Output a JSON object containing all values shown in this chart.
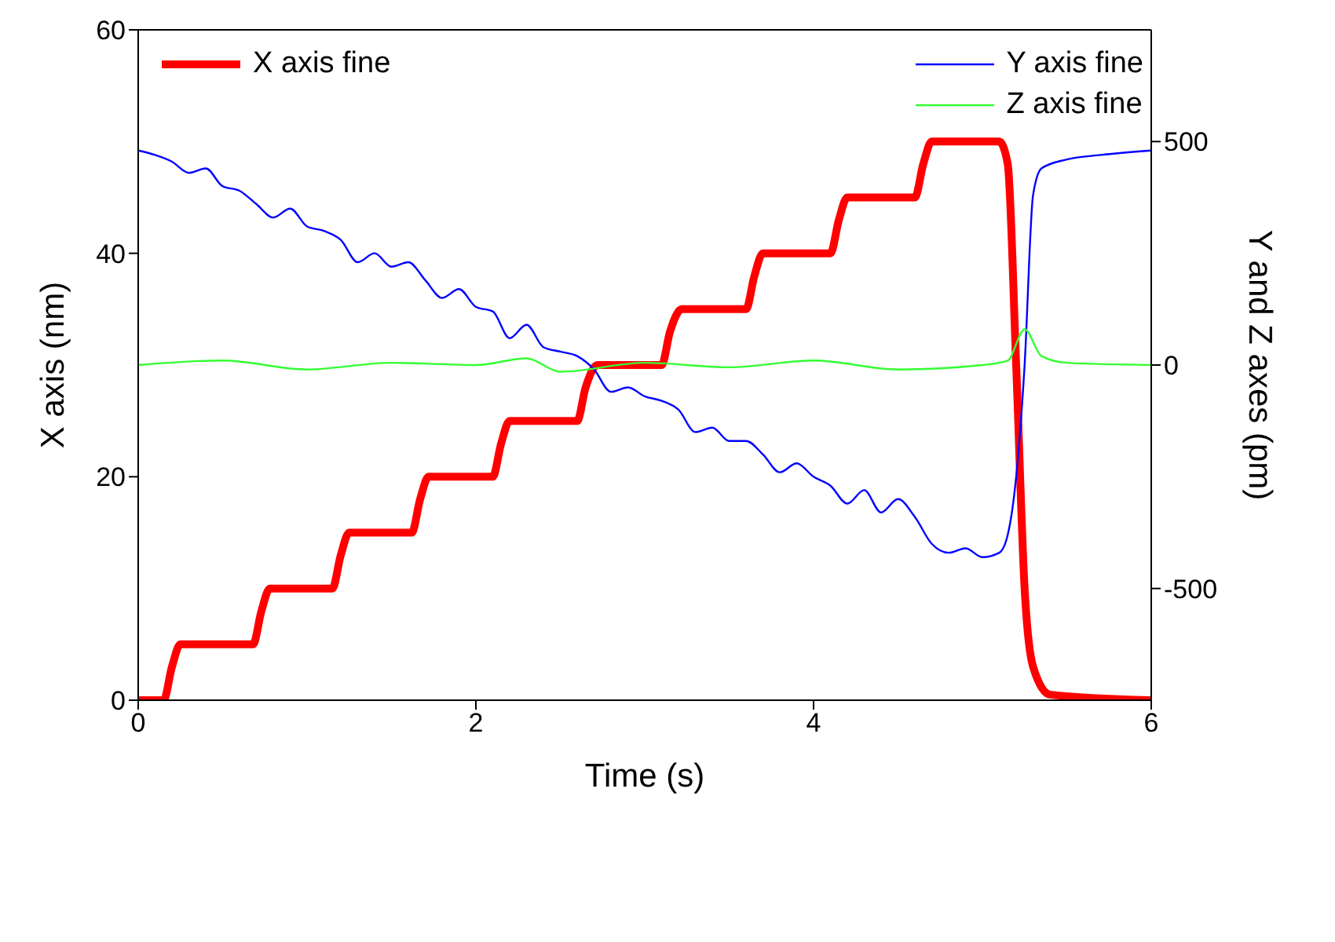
{
  "chart_data": {
    "type": "line",
    "xlabel": "Time (s)",
    "ylabel": "X axis (nm)",
    "y2label": "Y and Z axes (pm)",
    "xlim": [
      0,
      6
    ],
    "xticks": [
      0,
      2,
      4,
      6
    ],
    "ylim": [
      0,
      60
    ],
    "yticks": [
      0,
      20,
      40,
      60
    ],
    "y2lim": [
      -750,
      750
    ],
    "y2ticks": [
      -500,
      0,
      500
    ],
    "legend": "top",
    "marker": "none",
    "line_style": "solid",
    "series": [
      {
        "name": "X axis fine",
        "color": "#ff0000",
        "x": [
          0,
          0.15,
          0.2,
          0.25,
          0.68,
          0.73,
          0.78,
          1.15,
          1.2,
          1.25,
          1.62,
          1.67,
          1.72,
          2.1,
          2.15,
          2.2,
          2.6,
          2.65,
          2.72,
          3.1,
          3.15,
          3.22,
          3.6,
          3.65,
          3.7,
          4.1,
          4.15,
          4.2,
          4.6,
          4.65,
          4.7,
          5.1,
          5.15,
          5.2,
          5.25,
          5.3,
          5.4,
          6
        ],
        "values": [
          0,
          0,
          3,
          5,
          5,
          8,
          10,
          10,
          13,
          15,
          15,
          18,
          20,
          20,
          23,
          25,
          25,
          28,
          30,
          30,
          33,
          35,
          35,
          38,
          40,
          40,
          43,
          45,
          45,
          48,
          50,
          50,
          48,
          30,
          10,
          3,
          0.5,
          0
        ]
      },
      {
        "name": "Y axis fine",
        "color": "#0000ff",
        "axis": "y2",
        "x": [
          0,
          0.1,
          0.2,
          0.3,
          0.4,
          0.5,
          0.6,
          0.7,
          0.8,
          0.9,
          1,
          1.1,
          1.2,
          1.3,
          1.4,
          1.5,
          1.6,
          1.7,
          1.8,
          1.9,
          2,
          2.1,
          2.2,
          2.3,
          2.4,
          2.5,
          2.6,
          2.7,
          2.8,
          2.9,
          3,
          3.1,
          3.2,
          3.3,
          3.4,
          3.5,
          3.6,
          3.7,
          3.8,
          3.9,
          4,
          4.1,
          4.2,
          4.3,
          4.4,
          4.5,
          4.6,
          4.7,
          4.8,
          4.9,
          5,
          5.1,
          5.15,
          5.2,
          5.25,
          5.3,
          5.35,
          5.5,
          5.7,
          6
        ],
        "values": [
          480,
          470,
          455,
          430,
          440,
          400,
          390,
          360,
          330,
          350,
          310,
          300,
          280,
          230,
          250,
          220,
          230,
          190,
          150,
          170,
          130,
          120,
          60,
          90,
          40,
          30,
          20,
          -10,
          -60,
          -50,
          -70,
          -80,
          -100,
          -150,
          -140,
          -170,
          -170,
          -200,
          -240,
          -220,
          -250,
          -270,
          -310,
          -280,
          -330,
          -300,
          -340,
          -400,
          -420,
          -410,
          -430,
          -420,
          -380,
          -250,
          0,
          380,
          440,
          460,
          470,
          480
        ]
      },
      {
        "name": "Z axis fine",
        "color": "#33ff33",
        "axis": "y2",
        "x": [
          0,
          0.5,
          1,
          1.5,
          2,
          2.3,
          2.5,
          3,
          3.5,
          4,
          4.5,
          5,
          5.15,
          5.25,
          5.35,
          5.5,
          6
        ],
        "values": [
          0,
          10,
          -10,
          5,
          0,
          15,
          -15,
          5,
          -5,
          10,
          -10,
          0,
          10,
          80,
          20,
          5,
          0
        ]
      }
    ]
  }
}
